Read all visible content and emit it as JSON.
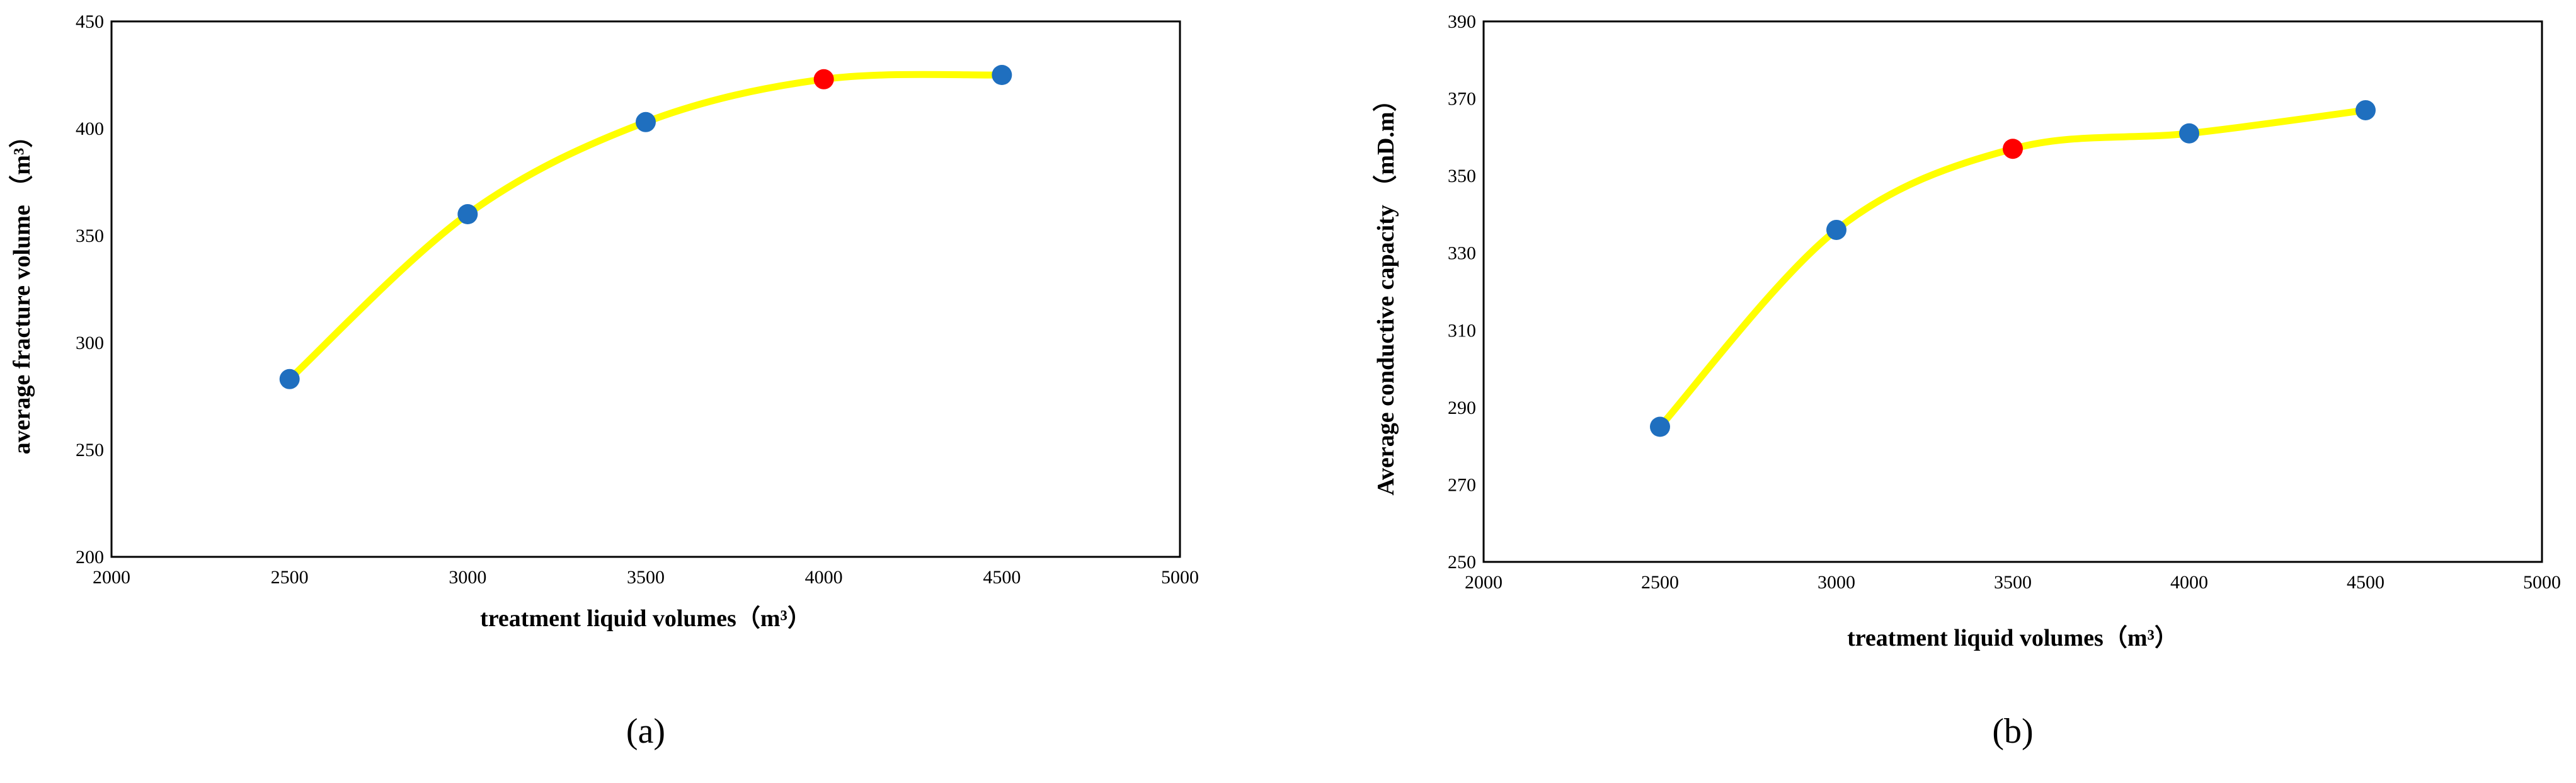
{
  "chart_data": [
    {
      "type": "line",
      "caption": "(a)",
      "x_label": "treatment liquid volumes（m³）",
      "y_label": "average fracture volume （m³）",
      "x": [
        2500,
        3000,
        3500,
        4000,
        4500
      ],
      "values": [
        283,
        360,
        403,
        423,
        425
      ],
      "color": "#ffff00",
      "point_colors": [
        "#1f6fbf",
        "#1f6fbf",
        "#1f6fbf",
        "#ff0000",
        "#1f6fbf"
      ],
      "xlim": [
        2000,
        5000
      ],
      "xticks": [
        2000,
        2500,
        3000,
        3500,
        4000,
        4500,
        5000
      ],
      "ylim": [
        200,
        450
      ],
      "yticks": [
        200,
        250,
        300,
        350,
        400,
        450
      ],
      "grid": false
    },
    {
      "type": "line",
      "caption": "(b)",
      "x_label": "treatment liquid volumes（m³）",
      "y_label": "Average conductive capacity （mD.m）",
      "x": [
        2500,
        3000,
        3500,
        4000,
        4500
      ],
      "values": [
        285,
        336,
        357,
        361,
        367
      ],
      "color": "#ffff00",
      "point_colors": [
        "#1f6fbf",
        "#1f6fbf",
        "#ff0000",
        "#1f6fbf",
        "#1f6fbf"
      ],
      "xlim": [
        2000,
        5000
      ],
      "xticks": [
        2000,
        2500,
        3000,
        3500,
        4000,
        4500,
        5000
      ],
      "ylim": [
        250,
        390
      ],
      "yticks": [
        250,
        270,
        290,
        310,
        330,
        350,
        370,
        390
      ],
      "grid": false
    }
  ]
}
